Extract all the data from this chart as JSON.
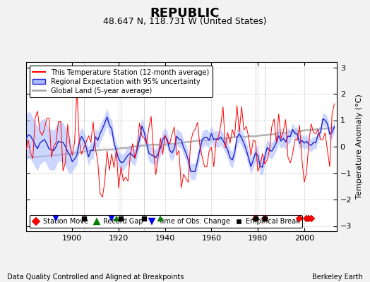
{
  "title": "REPUBLIC",
  "subtitle": "48.647 N, 118.731 W (United States)",
  "xlabel_bottom": "Data Quality Controlled and Aligned at Breakpoints",
  "xlabel_right": "Berkeley Earth",
  "ylabel": "Temperature Anomaly (°C)",
  "ylim": [
    -3.2,
    3.2
  ],
  "xlim": [
    1880,
    2014
  ],
  "yticks": [
    -3,
    -2,
    -1,
    0,
    1,
    2,
    3
  ],
  "xticks": [
    1900,
    1920,
    1940,
    1960,
    1980,
    2000
  ],
  "background_color": "#f2f2f2",
  "plot_bg_color": "#ffffff",
  "station_color": "#ff0000",
  "regional_color": "#2222cc",
  "regional_fill_color": "#aabbff",
  "global_color": "#aaaaaa",
  "seed": 12345,
  "start_year": 1880,
  "end_year": 2013,
  "station_moves": [
    1979,
    1983,
    1998,
    2001,
    2002,
    2003
  ],
  "record_gaps": [
    1919,
    1938
  ],
  "obs_changes": [
    1893,
    1917
  ],
  "empirical_breaks": [
    1905,
    1921,
    1931,
    1979,
    1983
  ]
}
